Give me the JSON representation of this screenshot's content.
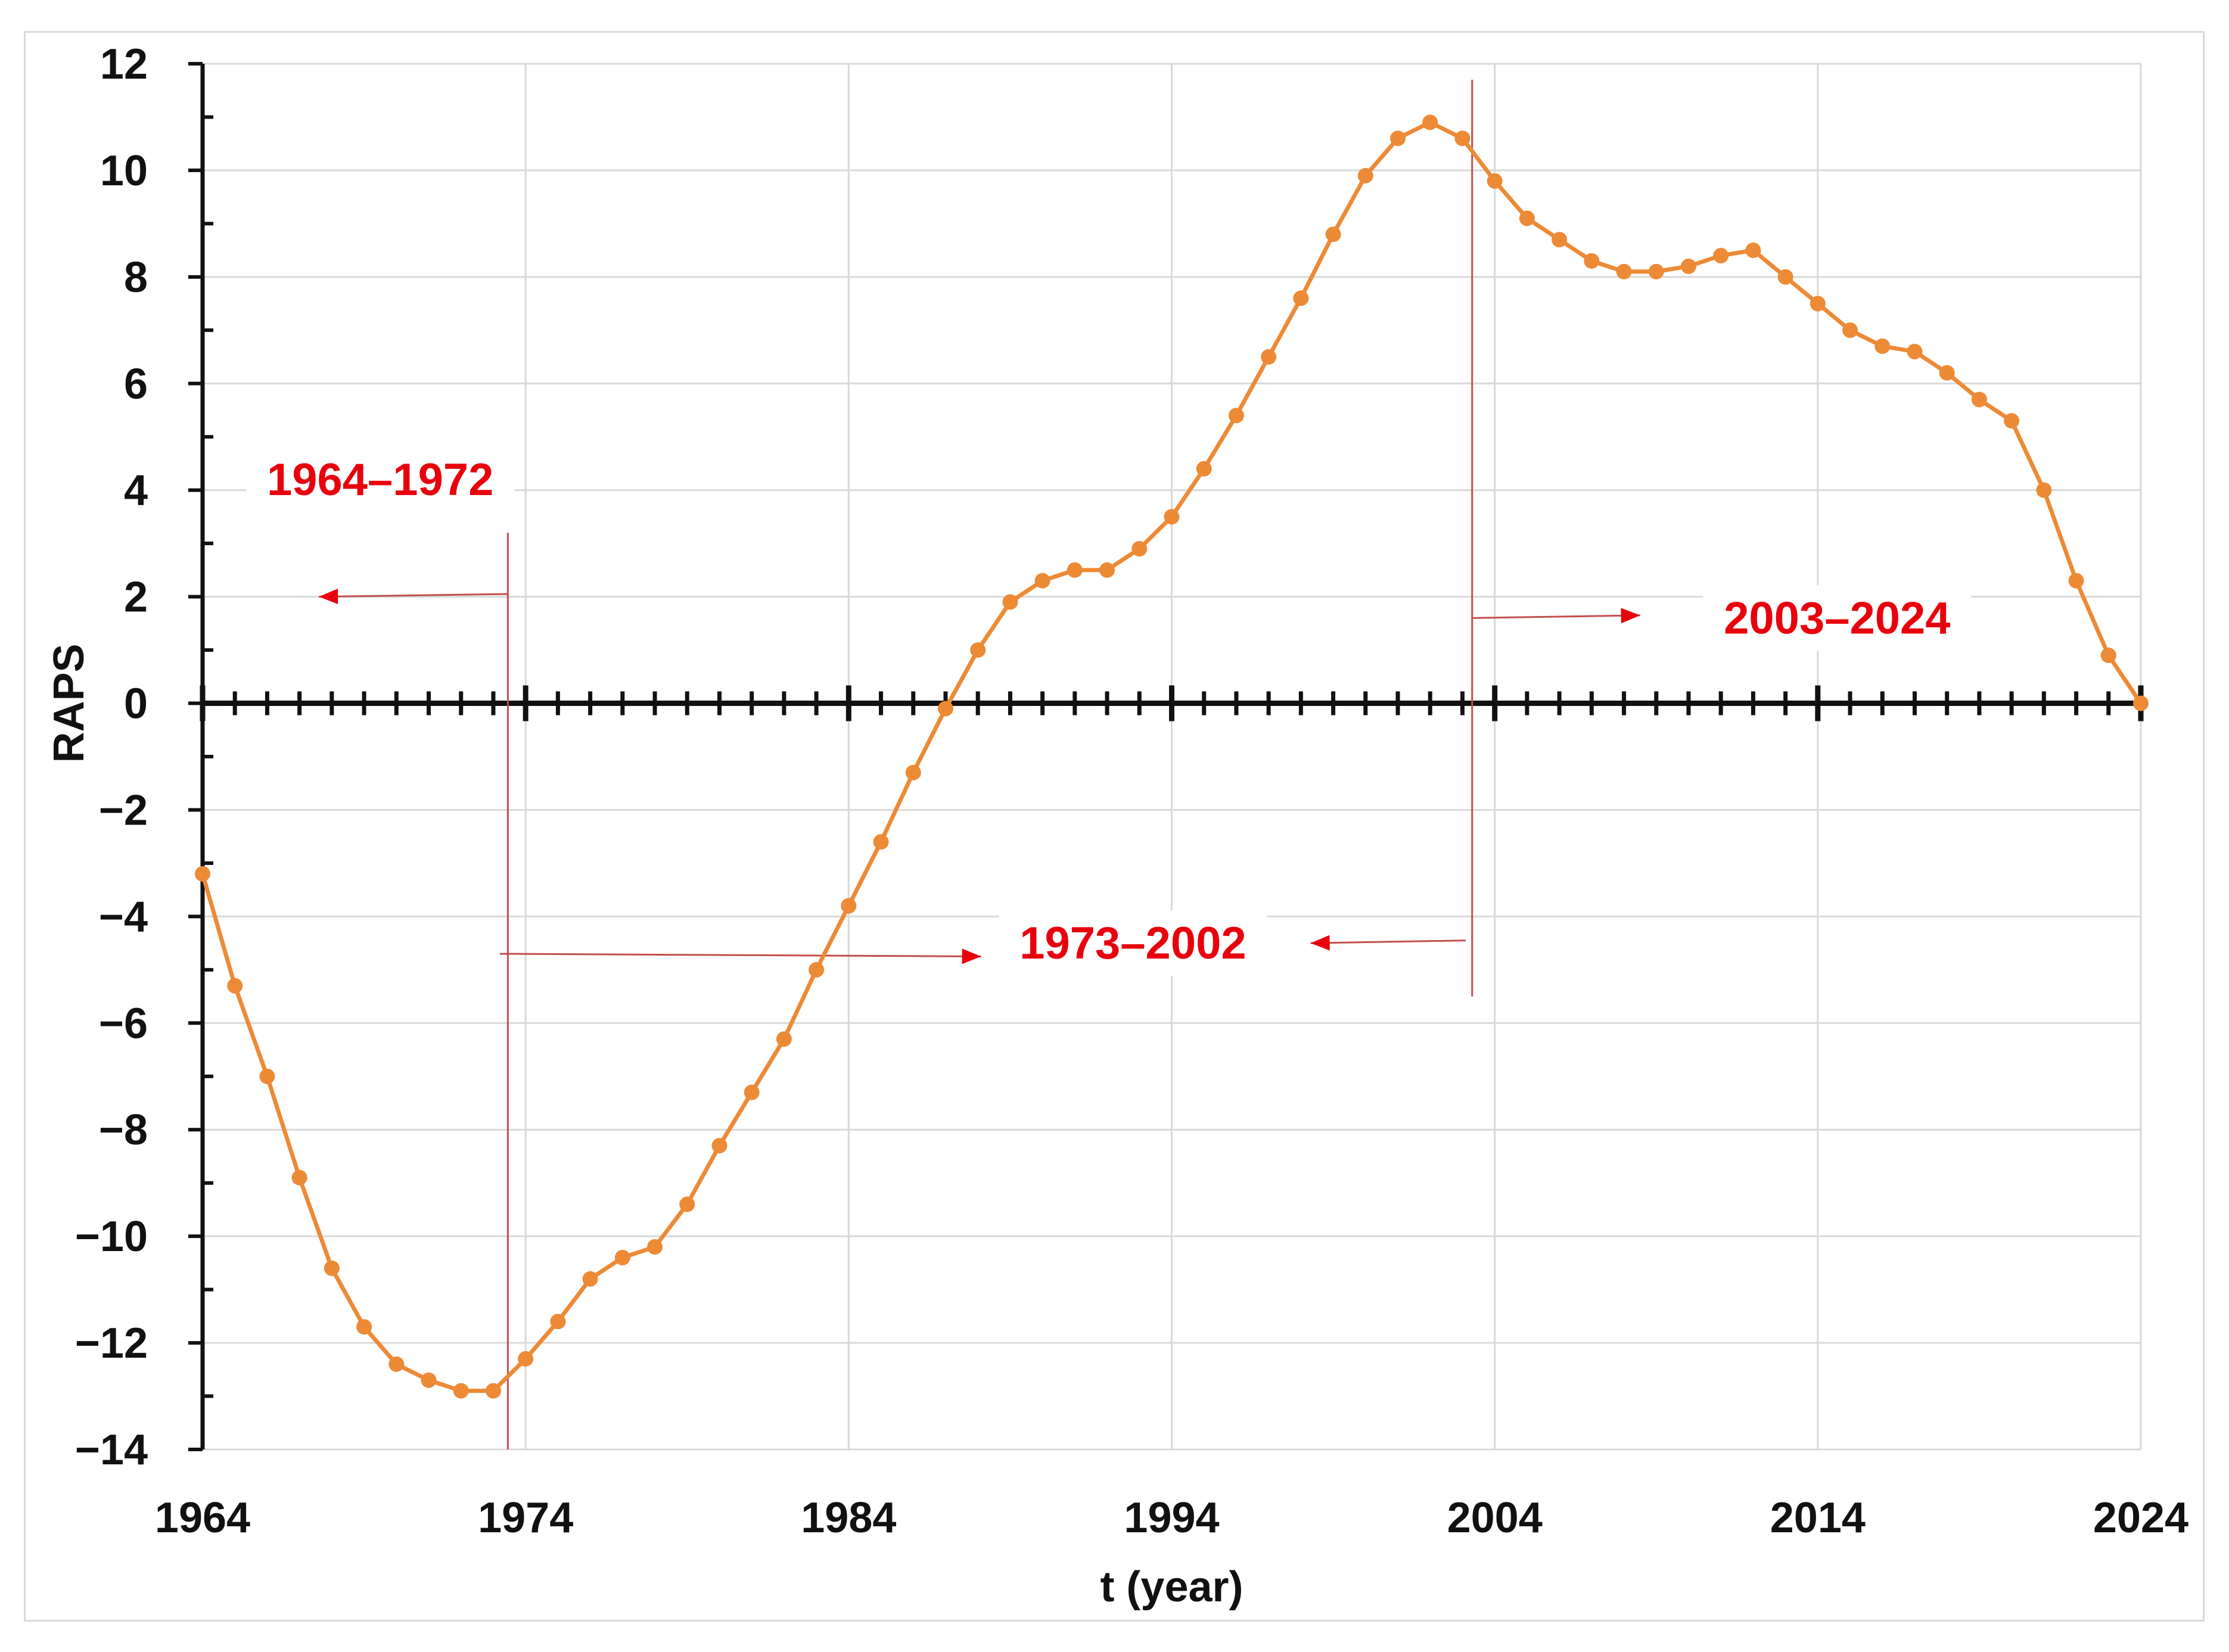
{
  "chart_data": {
    "type": "line",
    "title": "",
    "xlabel": "t (year)",
    "ylabel": "RAPS",
    "xlim": [
      1964,
      2024
    ],
    "ylim": [
      -14,
      12
    ],
    "x_ticks": [
      1964,
      1974,
      1984,
      1994,
      2004,
      2014,
      2024
    ],
    "y_ticks": [
      -14,
      -12,
      -10,
      -8,
      -6,
      -4,
      -2,
      0,
      2,
      4,
      6,
      8,
      10,
      12
    ],
    "y_tick_labels": [
      "−14",
      "−12",
      "−10",
      "−8",
      "−6",
      "−4",
      "−2",
      "0",
      "2",
      "4",
      "6",
      "8",
      "10",
      "12"
    ],
    "grid": true,
    "legend": "none",
    "series": [
      {
        "color": "#ED8A36",
        "x": [
          1964,
          1965,
          1966,
          1967,
          1968,
          1969,
          1970,
          1971,
          1972,
          1973,
          1974,
          1975,
          1976,
          1977,
          1978,
          1979,
          1980,
          1981,
          1982,
          1983,
          1984,
          1985,
          1986,
          1987,
          1988,
          1989,
          1990,
          1991,
          1992,
          1993,
          1994,
          1995,
          1996,
          1997,
          1998,
          1999,
          2000,
          2001,
          2002,
          2003,
          2004,
          2005,
          2006,
          2007,
          2008,
          2009,
          2010,
          2011,
          2012,
          2013,
          2014,
          2015,
          2016,
          2017,
          2018,
          2019,
          2020,
          2021,
          2022,
          2023,
          2024
        ],
        "values": [
          -3.2,
          -5.3,
          -7.0,
          -8.9,
          -10.6,
          -11.7,
          -12.4,
          -12.7,
          -12.9,
          -12.9,
          -12.3,
          -11.6,
          -10.8,
          -10.4,
          -10.2,
          -9.4,
          -8.3,
          -7.3,
          -6.3,
          -5.0,
          -3.8,
          -2.6,
          -1.3,
          -0.1,
          1.0,
          1.9,
          2.3,
          2.5,
          2.5,
          2.9,
          3.5,
          4.4,
          5.4,
          6.5,
          7.6,
          8.8,
          9.9,
          10.6,
          10.9,
          10.6,
          9.8,
          9.1,
          8.7,
          8.3,
          8.1,
          8.1,
          8.2,
          8.4,
          8.5,
          8.0,
          7.5,
          7.0,
          6.7,
          6.6,
          6.2,
          5.7,
          5.3,
          4.0,
          2.3,
          0.9,
          0.0
        ]
      }
    ],
    "annotations": [
      {
        "text": "1964–1972",
        "color": "#E8000D"
      },
      {
        "text": "1973–2002",
        "color": "#E8000D"
      },
      {
        "text": "2003–2024",
        "color": "#E8000D"
      }
    ],
    "period_boundaries": [
      1973,
      2003
    ],
    "boundary_color": "#C0504D"
  }
}
